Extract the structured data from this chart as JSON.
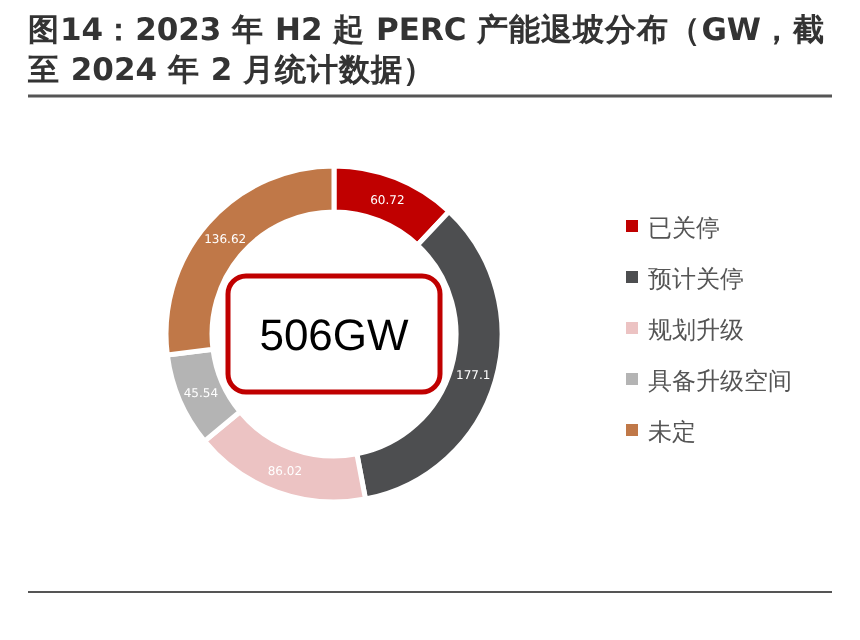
{
  "chart_data": {
    "type": "donut",
    "title": "图14：2023 年 H2 起 PERC 产能退坡分布（GW，截至 2024 年 2 月统计数据）",
    "categories": [
      "已关停",
      "预计关停",
      "规划升级",
      "具备升级空间",
      "未定"
    ],
    "values": [
      60.72,
      177.1,
      86.02,
      45.54,
      136.62
    ],
    "colors": [
      "#c00000",
      "#4d4e50",
      "#ecc3c3",
      "#b4b4b4",
      "#c07848"
    ],
    "data_labels": true,
    "legend": "right",
    "annotations": [
      "506GW"
    ]
  }
}
